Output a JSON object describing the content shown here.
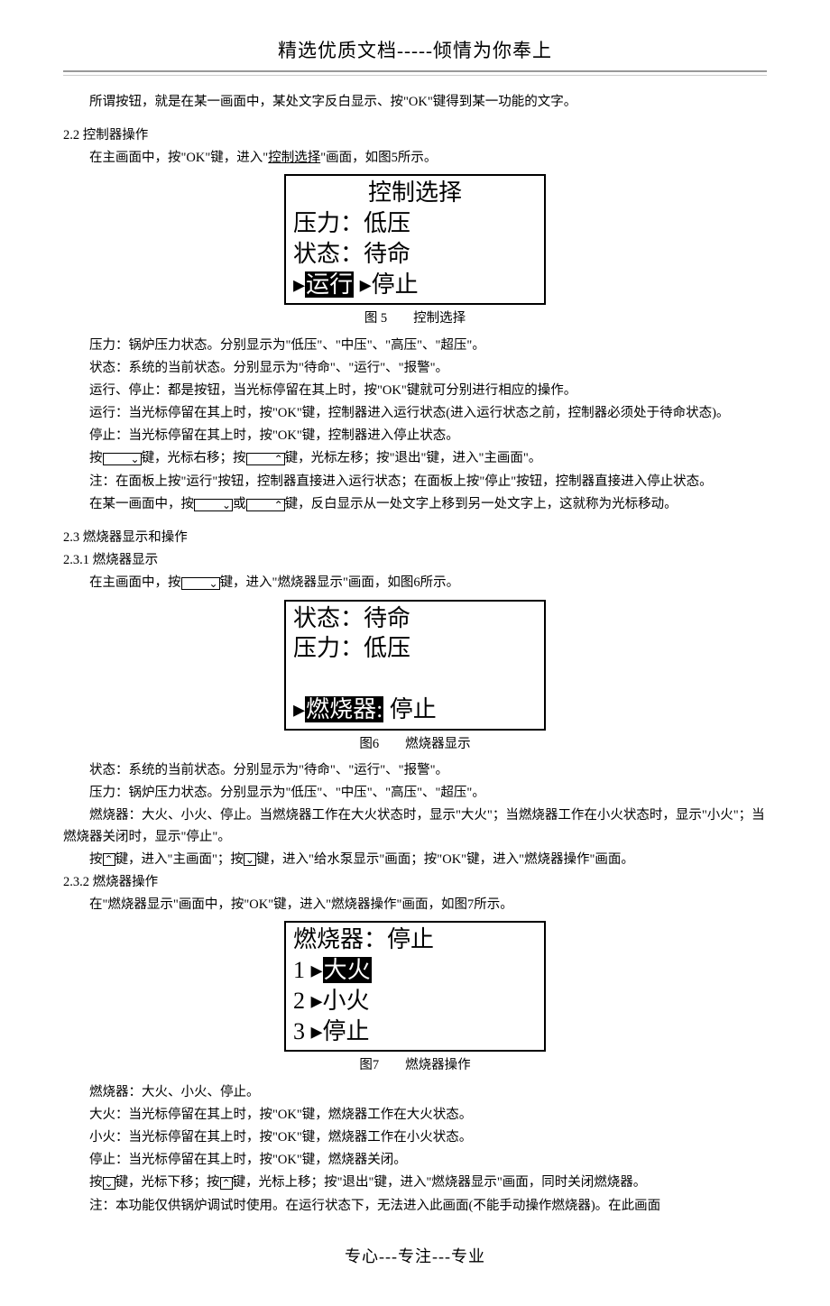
{
  "header": "精选优质文档-----倾情为你奉上",
  "intro": "所谓按钮，就是在某一画面中，某处文字反白显示、按\"OK\"键得到某一功能的文字。",
  "sec22": {
    "title": "2.2 控制器操作",
    "p1_a": "在主画面中，按\"OK\"键，进入\"",
    "p1_u": "控制选择",
    "p1_b": "\"画面，如图5所示。",
    "lcd": {
      "title": "控制选择",
      "l1a": "压力：",
      "l1b": "低压",
      "l2a": "状态：",
      "l2b": "待命",
      "l3_hl": "运行",
      "l3_rest": " ▸停止"
    },
    "caption": "图 5　　控制选择",
    "p2": "压力：锅炉压力状态。分别显示为\"低压\"、\"中压\"、\"高压\"、\"超压\"。",
    "p3": "状态：系统的当前状态。分别显示为\"待命\"、\"运行\"、\"报警\"。",
    "p4": "运行、停止：都是按钮，当光标停留在其上时，按\"OK\"键就可分别进行相应的操作。",
    "p5": "运行：当光标停留在其上时，按\"OK\"键，控制器进入运行状态(进入运行状态之前，控制器必须处于待命状态)。",
    "p6": "停止：当光标停留在其上时，按\"OK\"键，控制器进入停止状态。",
    "p7a": "按",
    "p7b": "键，光标右移；按",
    "p7c": "键，光标左移；按\"退出\"键，进入\"主画面\"。",
    "p8": "注：在面板上按\"运行\"按钮，控制器直接进入运行状态；在面板上按\"停止\"按钮，控制器直接进入停止状态。",
    "p9a": "在某一画面中，按",
    "p9b": "或",
    "p9c": "键，反白显示从一处文字上移到另一处文字上，这就称为光标移动。"
  },
  "sec23": {
    "title": "2.3 燃烧器显示和操作",
    "sub1": "2.3.1 燃烧器显示",
    "p1a": "在主画面中，按",
    "p1b": "键，进入\"燃烧器显示\"画面，如图6所示。",
    "lcd6": {
      "l1a": "状态：",
      "l1b": "待命",
      "l2a": "压力：",
      "l2b": "低压",
      "l3_hl": "燃烧器:",
      "l3_rest": " 停止"
    },
    "caption6": "图6　　燃烧器显示",
    "p2": "状态：系统的当前状态。分别显示为\"待命\"、\"运行\"、\"报警\"。",
    "p3": "压力：锅炉压力状态。分别显示为\"低压\"、\"中压\"、\"高压\"、\"超压\"。",
    "p4": "燃烧器：大火、小火、停止。当燃烧器工作在大火状态时，显示\"大火\"；当燃烧器工作在小火状态时，显示\"小火\"；当燃烧器关闭时，显示\"停止\"。",
    "p5a": "按",
    "p5b": "键，进入\"主画面\"；按",
    "p5c": "键，进入\"给水泵显示\"画面；按\"OK\"键，进入\"燃烧器操作\"画面。",
    "sub2": "2.3.2 燃烧器操作",
    "p6": "在\"燃烧器显示\"画面中，按\"OK\"键，进入\"燃烧器操作\"画面，如图7所示。",
    "lcd7": {
      "l1": "燃烧器：停止",
      "l2a": "1 ▸",
      "l2hl": "大火",
      "l3": "2 ▸小火",
      "l4": "3 ▸停止"
    },
    "caption7": "图7　　燃烧器操作",
    "p7": "燃烧器：大火、小火、停止。",
    "p8": "大火：当光标停留在其上时，按\"OK\"键，燃烧器工作在大火状态。",
    "p9": "小火：当光标停留在其上时，按\"OK\"键，燃烧器工作在小火状态。",
    "p10": "停止：当光标停留在其上时，按\"OK\"键，燃烧器关闭。",
    "p11a": "按",
    "p11b": "键，光标下移；按",
    "p11c": "键，光标上移；按\"退出\"键，进入\"燃烧器显示\"画面，同时关闭燃烧器。",
    "p12": "注：本功能仅供锅炉调试时使用。在运行状态下，无法进入此画面(不能手动操作燃烧器)。在此画面"
  },
  "footer": "专心---专注---专业",
  "icons": {
    "down": "⌄",
    "up": "⌃"
  }
}
